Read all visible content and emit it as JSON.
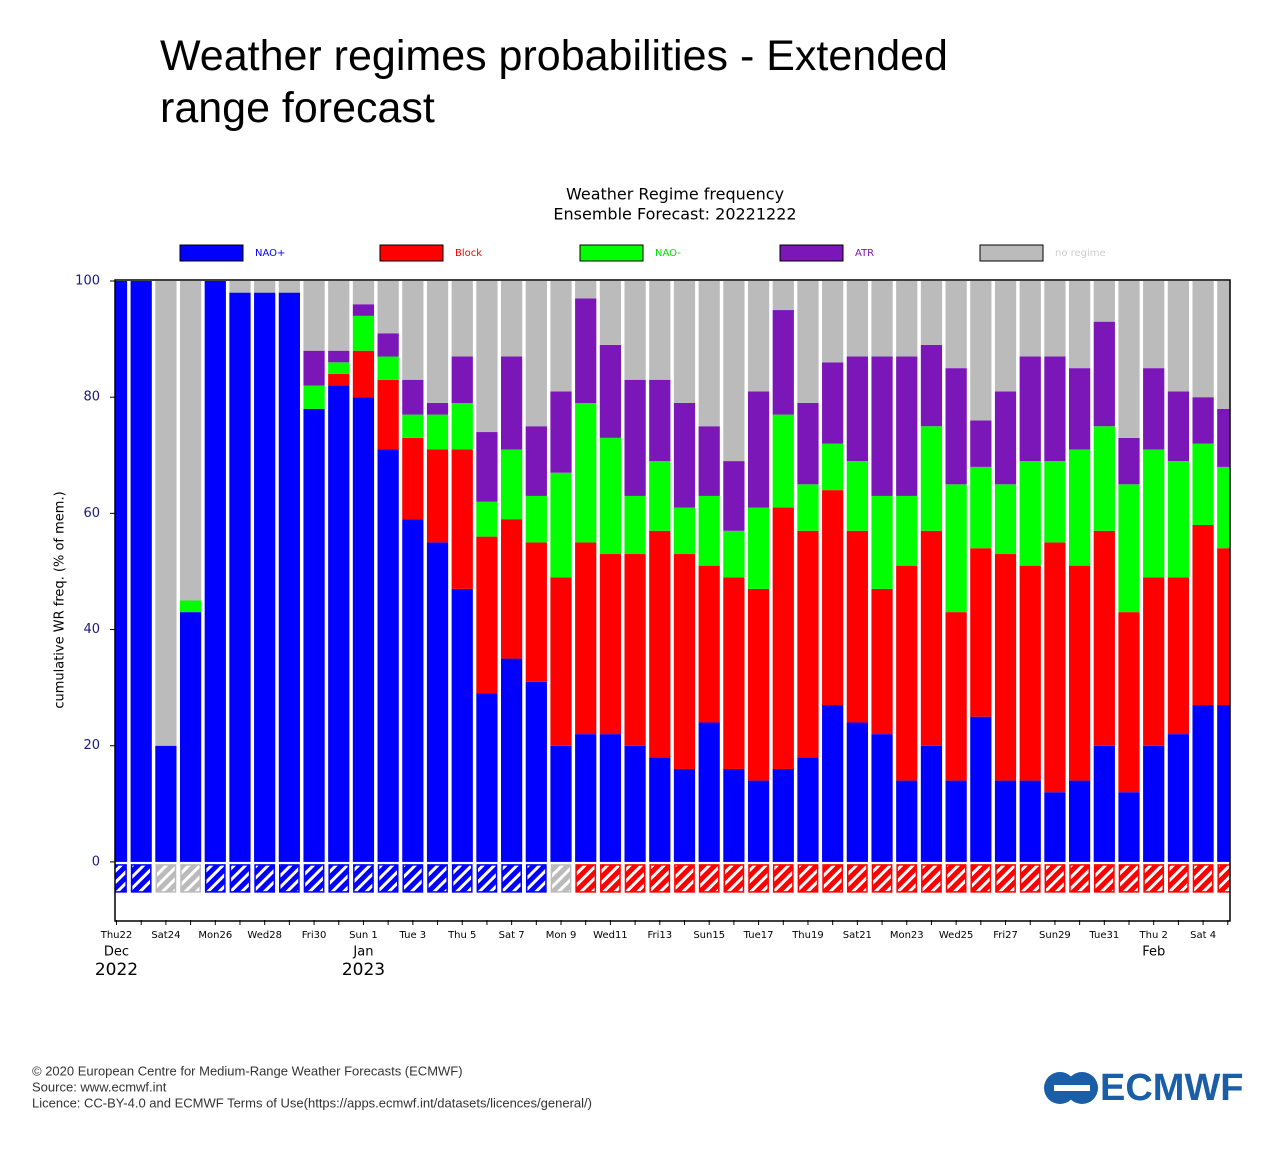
{
  "page_title": [
    "Weather regimes probabilities - Extended",
    "range forecast"
  ],
  "footer": [
    "© 2020 European Centre for Medium-Range Weather Forecasts (ECMWF)",
    "Source: www.ecmwf.int",
    "Licence: CC-BY-4.0 and ECMWF Terms of Use(https://apps.ecmwf.int/datasets/licences/general/)"
  ],
  "logo": "ECMWF",
  "chart_data": {
    "type": "stacked-bar",
    "title": "Weather Regime frequency",
    "subtitle": "Ensemble Forecast: 20221222",
    "y_label": "cumulative WR freq. (% of mem.)",
    "categories": [
      "Thu22",
      null,
      "Sat24",
      null,
      "Mon26",
      null,
      "Wed28",
      null,
      "Fri30",
      null,
      "Sun 1",
      null,
      "Tue 3",
      null,
      "Thu 5",
      null,
      "Sat 7",
      null,
      "Mon 9",
      null,
      "Wed11",
      null,
      "Fri13",
      null,
      "Sun15",
      null,
      "Tue17",
      null,
      "Thu19",
      null,
      "Sat21",
      null,
      "Mon23",
      null,
      "Wed25",
      null,
      "Fri27",
      null,
      "Sun29",
      null,
      "Tue31",
      null,
      "Thu 2",
      null,
      "Sat 4",
      null
    ],
    "highlight_categories": [
      10,
      24,
      38
    ],
    "highlight_color": "#ff0000",
    "x_groups": [
      {
        "index": 0,
        "month": "Dec",
        "year": "2022"
      },
      {
        "index": 10,
        "month": "Jan",
        "year": "2023"
      },
      {
        "index": 42,
        "month": "Feb"
      }
    ],
    "series": [
      {
        "name": "NAO+",
        "color": "#0000ff",
        "label_color": "#0000ff",
        "values": [
          100,
          100,
          20,
          43,
          100,
          98,
          98,
          98,
          78,
          82,
          80,
          71,
          59,
          55,
          47,
          29,
          35,
          31,
          20,
          22,
          22,
          20,
          18,
          16,
          24,
          16,
          14,
          16,
          18,
          27,
          24,
          22,
          14,
          20,
          14,
          25,
          14,
          14,
          12,
          14,
          20,
          12,
          20,
          22,
          27,
          27
        ]
      },
      {
        "name": "Block",
        "color": "#ff0000",
        "label_color": "#ff0000",
        "values": [
          0,
          0,
          0,
          0,
          0,
          0,
          0,
          0,
          0,
          2,
          8,
          12,
          14,
          16,
          24,
          27,
          24,
          24,
          29,
          33,
          31,
          33,
          39,
          37,
          27,
          33,
          33,
          45,
          39,
          37,
          33,
          25,
          37,
          37,
          29,
          29,
          39,
          37,
          43,
          37,
          37,
          31,
          29,
          27,
          31,
          27
        ]
      },
      {
        "name": "NAO-",
        "color": "#00ff00",
        "label_color": "#00dd00",
        "values": [
          0,
          0,
          0,
          2,
          0,
          0,
          0,
          0,
          4,
          2,
          6,
          4,
          4,
          6,
          8,
          6,
          12,
          8,
          18,
          24,
          20,
          10,
          12,
          8,
          12,
          8,
          14,
          16,
          8,
          8,
          12,
          16,
          12,
          18,
          22,
          14,
          12,
          18,
          14,
          20,
          18,
          22,
          22,
          20,
          14,
          14
        ]
      },
      {
        "name": "ATR",
        "color": "#7b16b8",
        "label_color": "#7b16b8",
        "values": [
          0,
          0,
          0,
          0,
          0,
          0,
          0,
          0,
          6,
          2,
          2,
          4,
          6,
          2,
          8,
          12,
          16,
          12,
          14,
          18,
          16,
          20,
          14,
          18,
          12,
          12,
          20,
          18,
          14,
          14,
          18,
          24,
          24,
          14,
          20,
          8,
          16,
          18,
          18,
          14,
          18,
          8,
          14,
          12,
          8,
          10
        ]
      },
      {
        "name": "no regime",
        "color": "#bbbbbb",
        "label_color": "#cccccc",
        "values": [
          0,
          0,
          80,
          55,
          0,
          2,
          2,
          2,
          12,
          12,
          4,
          9,
          17,
          21,
          13,
          26,
          13,
          25,
          19,
          3,
          11,
          17,
          17,
          21,
          25,
          31,
          19,
          5,
          21,
          14,
          13,
          13,
          13,
          11,
          15,
          24,
          19,
          13,
          13,
          15,
          7,
          27,
          15,
          19,
          20,
          22
        ]
      }
    ],
    "dominant_regime": [
      0,
      0,
      4,
      4,
      0,
      0,
      0,
      0,
      0,
      0,
      0,
      0,
      0,
      0,
      0,
      0,
      0,
      0,
      4,
      1,
      1,
      1,
      1,
      1,
      1,
      1,
      1,
      1,
      1,
      1,
      1,
      1,
      1,
      1,
      1,
      1,
      1,
      1,
      1,
      1,
      1,
      1,
      1,
      1,
      1,
      1
    ],
    "ylim": [
      -10,
      100
    ],
    "yticks": [
      0,
      20,
      40,
      60,
      80,
      100
    ]
  }
}
